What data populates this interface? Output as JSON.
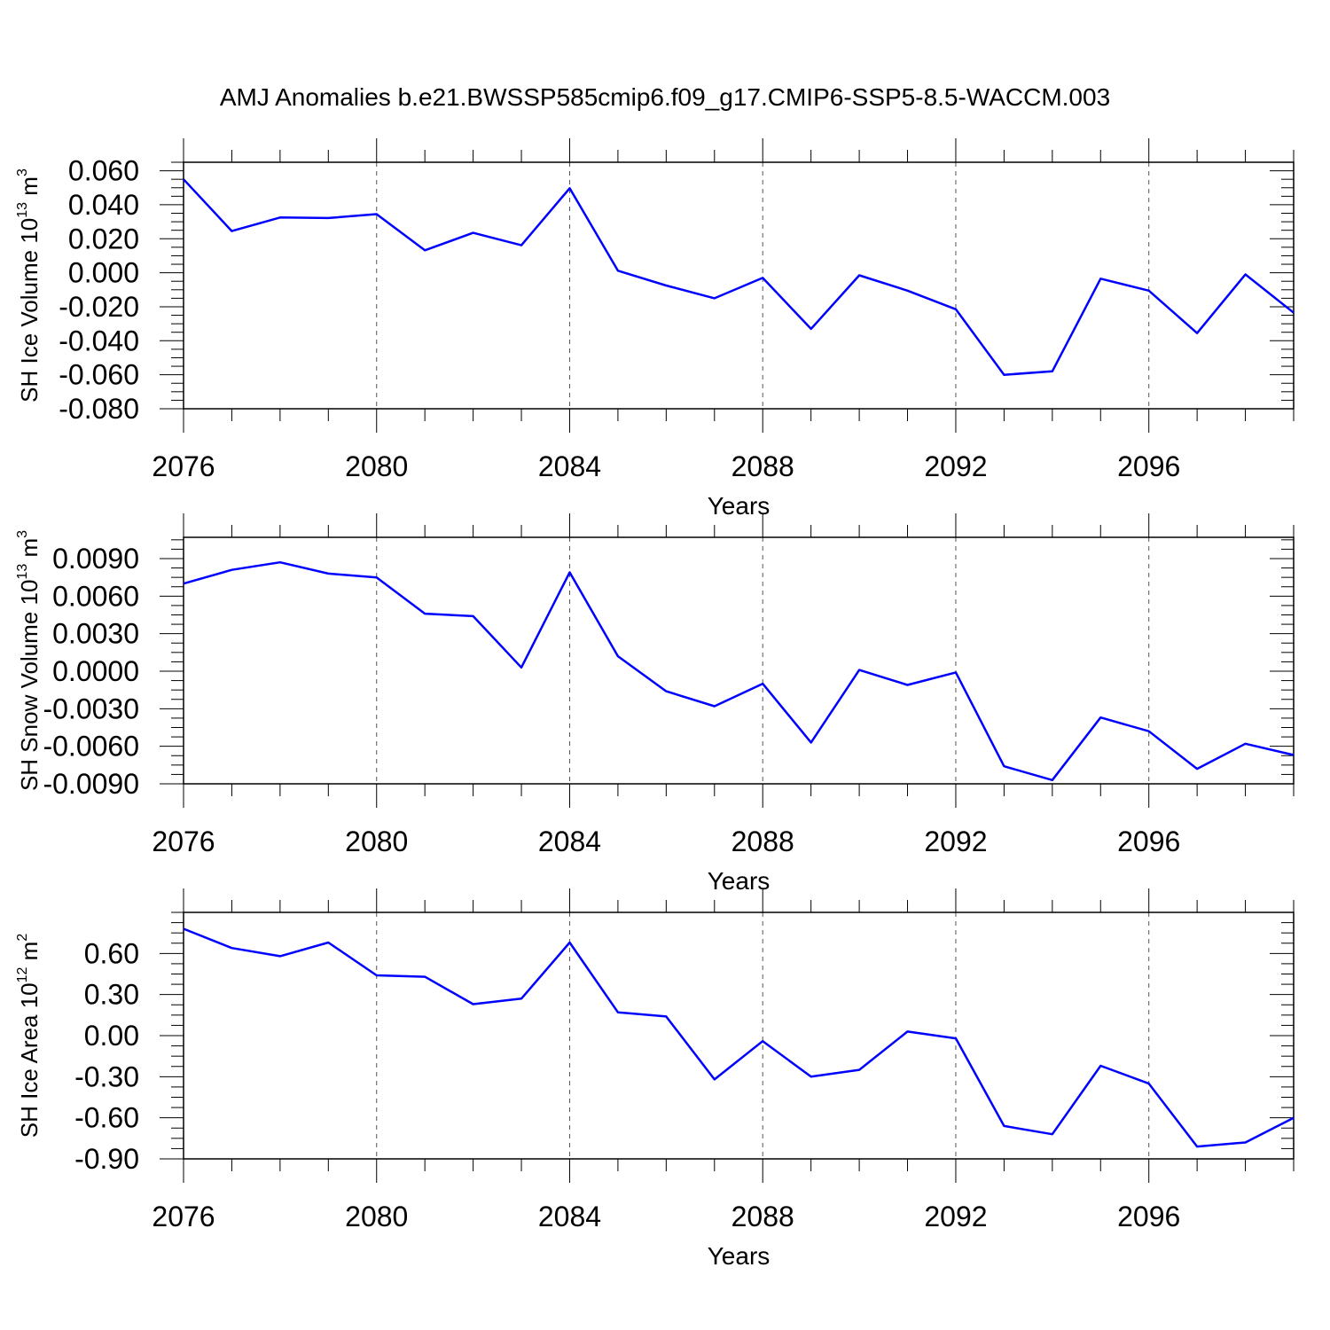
{
  "title": "AMJ Anomalies b.e21.BWSSP585cmip6.f09_g17.CMIP6-SSP5-8.5-WACCM.003",
  "chart_data": [
    {
      "type": "line",
      "ylabel": {
        "main": "SH Ice Volume 10",
        "exp": "13",
        "unit": " m",
        "unit_exp": "3"
      },
      "xlabel": "Years",
      "xlim": [
        2076,
        2099
      ],
      "ylim": [
        -0.08,
        0.065
      ],
      "yticks": [
        0.06,
        0.04,
        0.02,
        0.0,
        -0.02,
        -0.04,
        -0.06,
        -0.08
      ],
      "ytick_labels": [
        "0.060",
        "0.040",
        "0.020",
        "0.000",
        "-0.020",
        "-0.040",
        "-0.060",
        "-0.080"
      ],
      "xticks": [
        2076,
        2080,
        2084,
        2088,
        2092,
        2096
      ],
      "xtick_labels": [
        "2076",
        "2080",
        "2084",
        "2088",
        "2092",
        "2096"
      ],
      "grid": "vertical dashed",
      "color": "#0000ff",
      "x": [
        2076,
        2077,
        2078,
        2079,
        2080,
        2081,
        2082,
        2083,
        2084,
        2085,
        2086,
        2087,
        2088,
        2089,
        2090,
        2091,
        2092,
        2093,
        2094,
        2095,
        2096,
        2097,
        2098,
        2099
      ],
      "y": [
        0.055,
        0.0245,
        0.0325,
        0.0322,
        0.0345,
        0.0132,
        0.0235,
        0.0162,
        0.0497,
        0.0012,
        -0.0075,
        -0.015,
        -0.003,
        -0.033,
        -0.0015,
        -0.0105,
        -0.0215,
        -0.06,
        -0.058,
        -0.0035,
        -0.0105,
        -0.0355,
        -0.001,
        -0.0235
      ]
    },
    {
      "type": "line",
      "ylabel": {
        "main": "SH Snow Volume 10",
        "exp": "13",
        "unit": " m",
        "unit_exp": "3"
      },
      "xlabel": "Years",
      "xlim": [
        2076,
        2099
      ],
      "ylim": [
        -0.009,
        0.0107
      ],
      "yticks": [
        0.009,
        0.006,
        0.003,
        0.0,
        -0.003,
        -0.006,
        -0.009
      ],
      "ytick_labels": [
        "0.0090",
        "0.0060",
        "0.0030",
        "0.0000",
        "-0.0030",
        "-0.0060",
        "-0.0090"
      ],
      "xticks": [
        2076,
        2080,
        2084,
        2088,
        2092,
        2096
      ],
      "xtick_labels": [
        "2076",
        "2080",
        "2084",
        "2088",
        "2092",
        "2096"
      ],
      "grid": "vertical dashed",
      "color": "#0000ff",
      "x": [
        2076,
        2077,
        2078,
        2079,
        2080,
        2081,
        2082,
        2083,
        2084,
        2085,
        2086,
        2087,
        2088,
        2089,
        2090,
        2091,
        2092,
        2093,
        2094,
        2095,
        2096,
        2097,
        2098,
        2099
      ],
      "y": [
        0.007,
        0.0081,
        0.0087,
        0.0078,
        0.0075,
        0.0046,
        0.0044,
        0.0003,
        0.0079,
        0.0012,
        -0.0016,
        -0.0028,
        -0.001,
        -0.0057,
        0.0001,
        -0.0011,
        -0.0001,
        -0.0076,
        -0.0087,
        -0.0037,
        -0.0048,
        -0.0078,
        -0.0058,
        -0.0067
      ]
    },
    {
      "type": "line",
      "ylabel": {
        "main": "SH Ice Area 10",
        "exp": "12",
        "unit": " m",
        "unit_exp": "2"
      },
      "xlabel": "Years",
      "xlim": [
        2076,
        2099
      ],
      "ylim": [
        -0.9,
        0.9
      ],
      "yticks": [
        0.6,
        0.3,
        0.0,
        -0.3,
        -0.6,
        -0.9
      ],
      "ytick_labels": [
        "0.60",
        "0.30",
        "0.00",
        "-0.30",
        "-0.60",
        "-0.90"
      ],
      "xticks": [
        2076,
        2080,
        2084,
        2088,
        2092,
        2096
      ],
      "xtick_labels": [
        "2076",
        "2080",
        "2084",
        "2088",
        "2092",
        "2096"
      ],
      "grid": "vertical dashed",
      "color": "#0000ff",
      "x": [
        2076,
        2077,
        2078,
        2079,
        2080,
        2081,
        2082,
        2083,
        2084,
        2085,
        2086,
        2087,
        2088,
        2089,
        2090,
        2091,
        2092,
        2093,
        2094,
        2095,
        2096,
        2097,
        2098,
        2099
      ],
      "y": [
        0.78,
        0.64,
        0.58,
        0.68,
        0.44,
        0.43,
        0.23,
        0.27,
        0.68,
        0.17,
        0.14,
        -0.32,
        -0.04,
        -0.3,
        -0.25,
        0.03,
        -0.02,
        -0.66,
        -0.72,
        -0.22,
        -0.35,
        -0.81,
        -0.78,
        -0.6
      ]
    }
  ]
}
